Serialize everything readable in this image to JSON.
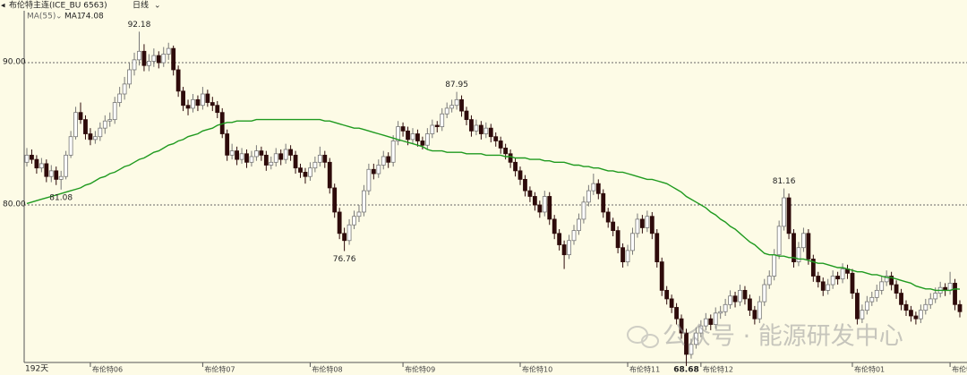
{
  "header": {
    "title": "布伦特主连(ICE_BU 6563)",
    "period": "日线",
    "indicator": "MA(55)"
  },
  "watermark": "公众号 · 能源研发中心",
  "chart_data": {
    "type": "candlestick",
    "days_label": "192天",
    "categories": [
      null,
      null,
      null,
      null,
      null,
      null,
      null,
      null,
      null,
      null,
      null,
      null,
      null,
      "布伦特06",
      null,
      null,
      null,
      null,
      null,
      null,
      null,
      null,
      null,
      null,
      null,
      null,
      null,
      null,
      null,
      null,
      null,
      null,
      null,
      null,
      null,
      null,
      "布伦特07",
      null,
      null,
      null,
      null,
      null,
      null,
      null,
      null,
      null,
      null,
      null,
      null,
      null,
      null,
      null,
      null,
      null,
      null,
      null,
      null,
      null,
      "布伦特08",
      null,
      null,
      null,
      null,
      null,
      null,
      null,
      null,
      null,
      null,
      null,
      null,
      null,
      null,
      null,
      null,
      null,
      null,
      "布伦特09",
      null,
      null,
      null,
      null,
      null,
      null,
      null,
      null,
      null,
      null,
      null,
      null,
      null,
      null,
      null,
      null,
      null,
      null,
      null,
      null,
      null,
      null,
      null,
      "布伦特10",
      null,
      null,
      null,
      null,
      null,
      null,
      null,
      null,
      null,
      null,
      null,
      null,
      null,
      null,
      null,
      null,
      null,
      null,
      null,
      null,
      null,
      "布伦特11",
      null,
      null,
      null,
      null,
      null,
      null,
      null,
      null,
      null,
      null,
      null,
      null,
      null,
      null,
      "布伦特12",
      null,
      null,
      null,
      null,
      null,
      null,
      null,
      null,
      null,
      null,
      null,
      null,
      null,
      null,
      null,
      null,
      null,
      null,
      null,
      null,
      null,
      null,
      null,
      null,
      null,
      null,
      null,
      null,
      null,
      null,
      "布伦特01",
      null,
      null,
      null,
      null,
      null,
      null,
      null,
      null,
      null,
      null,
      null,
      null,
      null,
      null,
      null,
      null,
      null,
      null,
      null,
      "布伦特",
      null,
      null
    ],
    "open": [
      83.0,
      83.5,
      83.2,
      82.6,
      82.9,
      82.0,
      82.4,
      81.8,
      82.0,
      83.5,
      84.8,
      86.5,
      86.0,
      85.0,
      84.6,
      84.8,
      85.4,
      85.9,
      86.0,
      87.2,
      87.8,
      88.5,
      89.5,
      90.2,
      90.8,
      89.8,
      90.1,
      90.5,
      90.0,
      90.6,
      91.0,
      89.5,
      88.0,
      87.0,
      86.8,
      87.4,
      87.0,
      87.8,
      87.2,
      87.0,
      86.5,
      85.0,
      83.5,
      83.8,
      83.2,
      83.6,
      83.0,
      83.4,
      83.8,
      83.5,
      82.8,
      83.0,
      83.6,
      83.2,
      83.9,
      83.5,
      82.6,
      82.3,
      82.0,
      82.6,
      83.0,
      83.5,
      83.0,
      81.2,
      79.5,
      78.0,
      77.5,
      78.6,
      79.2,
      79.5,
      81.0,
      82.5,
      82.2,
      82.8,
      83.4,
      83.0,
      84.5,
      85.5,
      85.2,
      84.6,
      85.0,
      84.5,
      84.2,
      85.0,
      85.6,
      85.5,
      86.4,
      86.8,
      87.0,
      87.4,
      86.6,
      86.0,
      85.2,
      85.6,
      85.0,
      85.4,
      84.8,
      84.5,
      84.0,
      83.6,
      83.0,
      82.4,
      81.8,
      81.0,
      80.6,
      80.0,
      79.5,
      80.6,
      79.0,
      78.0,
      77.2,
      76.5,
      77.5,
      78.2,
      79.0,
      80.2,
      81.0,
      81.5,
      80.8,
      79.5,
      78.8,
      78.2,
      77.0,
      76.0,
      76.8,
      78.0,
      79.0,
      78.4,
      79.2,
      78.0,
      76.0,
      74.0,
      73.4,
      72.8,
      72.0,
      71.0,
      69.5,
      70.2,
      71.0,
      71.5,
      72.0,
      71.6,
      72.4,
      72.5,
      73.0,
      73.6,
      73.2,
      74.0,
      73.4,
      72.6,
      72.0,
      73.2,
      74.4,
      75.0,
      76.5,
      78.5,
      80.5,
      78.0,
      76.0,
      77.0,
      78.0,
      76.2,
      75.0,
      74.6,
      74.0,
      74.4,
      75.0,
      74.8,
      75.5,
      75.2,
      73.8,
      72.0,
      72.6,
      73.2,
      73.5,
      74.0,
      74.6,
      75.0,
      74.4,
      73.8,
      73.0,
      72.6,
      72.2,
      72.0,
      72.6,
      73.0,
      73.4,
      73.8,
      74.2,
      74.0,
      74.5,
      73.0
    ],
    "high": [
      84.0,
      83.9,
      83.5,
      83.3,
      83.2,
      82.8,
      82.7,
      82.4,
      83.8,
      85.2,
      86.9,
      87.2,
      86.3,
      85.4,
      85.2,
      85.8,
      86.3,
      86.5,
      87.6,
      88.3,
      89.0,
      90.0,
      90.7,
      92.18,
      91.3,
      90.6,
      91.0,
      90.8,
      91.1,
      91.4,
      91.2,
      89.8,
      88.3,
      87.4,
      87.8,
      87.7,
      88.3,
      88.1,
      87.6,
      87.3,
      86.8,
      85.3,
      84.3,
      84.1,
      84.0,
      83.9,
      83.8,
      84.2,
      84.1,
      83.8,
      83.4,
      84.0,
      83.9,
      84.3,
      84.2,
      83.8,
      82.9,
      82.6,
      83.0,
      83.4,
      84.1,
      83.8,
      83.3,
      81.5,
      79.8,
      78.4,
      79.0,
      79.6,
      80.0,
      81.4,
      82.9,
      82.9,
      83.2,
      83.8,
      83.7,
      84.9,
      85.9,
      85.8,
      85.5,
      85.4,
      85.3,
      84.8,
      85.4,
      86.0,
      85.9,
      86.8,
      87.2,
      87.4,
      87.95,
      87.7,
      86.9,
      86.3,
      86.0,
      85.9,
      85.8,
      85.7,
      85.1,
      84.8,
      84.3,
      83.9,
      83.3,
      82.7,
      82.1,
      81.3,
      80.9,
      80.3,
      81.0,
      80.9,
      79.3,
      78.3,
      77.5,
      77.9,
      78.6,
      79.4,
      80.6,
      81.4,
      82.2,
      81.8,
      81.1,
      79.8,
      79.1,
      78.5,
      77.3,
      77.2,
      78.4,
      79.4,
      79.3,
      79.6,
      79.5,
      78.3,
      76.3,
      74.3,
      73.7,
      73.1,
      72.3,
      71.3,
      70.6,
      71.4,
      71.9,
      72.4,
      72.3,
      72.8,
      72.9,
      73.4,
      74.0,
      73.9,
      74.4,
      74.3,
      73.7,
      72.9,
      73.6,
      74.8,
      75.4,
      76.9,
      78.9,
      81.16,
      80.8,
      78.3,
      77.4,
      78.4,
      78.3,
      76.5,
      75.3,
      74.9,
      74.8,
      75.4,
      75.3,
      75.9,
      75.8,
      75.5,
      74.1,
      73.0,
      73.6,
      73.9,
      74.4,
      75.0,
      75.4,
      75.3,
      74.7,
      74.1,
      73.3,
      72.9,
      72.5,
      73.0,
      73.4,
      73.8,
      74.2,
      74.6,
      74.5,
      75.3,
      74.8,
      73.3
    ],
    "low": [
      82.7,
      82.9,
      82.2,
      82.3,
      81.6,
      81.6,
      81.4,
      81.08,
      81.8,
      83.3,
      84.6,
      85.7,
      84.6,
      84.2,
      84.3,
      84.5,
      85.0,
      85.5,
      85.7,
      86.9,
      87.4,
      88.2,
      89.1,
      89.8,
      89.4,
      89.4,
      89.7,
      89.6,
      89.7,
      90.2,
      89.1,
      87.6,
      86.6,
      86.3,
      86.5,
      86.6,
      86.7,
      86.9,
      86.6,
      86.1,
      84.7,
      83.1,
      83.2,
      82.8,
      82.9,
      82.6,
      82.7,
      83.1,
      83.1,
      82.4,
      82.5,
      82.7,
      82.8,
      82.9,
      83.1,
      82.2,
      81.9,
      81.5,
      81.7,
      82.3,
      82.7,
      82.6,
      80.8,
      79.1,
      77.6,
      76.76,
      77.2,
      78.3,
      78.8,
      79.2,
      80.7,
      81.8,
      81.9,
      82.5,
      82.6,
      82.7,
      84.2,
      84.8,
      84.2,
      84.3,
      84.1,
      83.9,
      83.9,
      84.7,
      85.1,
      85.2,
      86.1,
      86.5,
      86.7,
      86.2,
      85.6,
      84.8,
      84.9,
      84.6,
      84.7,
      84.4,
      84.1,
      83.6,
      83.2,
      82.6,
      82.0,
      81.4,
      80.6,
      80.2,
      79.6,
      79.1,
      79.2,
      78.6,
      77.6,
      76.8,
      75.5,
      76.2,
      77.2,
      77.9,
      78.7,
      79.9,
      80.7,
      80.4,
      79.1,
      78.4,
      77.8,
      76.6,
      75.6,
      75.7,
      76.5,
      77.7,
      78.0,
      78.1,
      77.6,
      75.6,
      73.6,
      73.0,
      72.4,
      71.6,
      70.6,
      68.68,
      69.2,
      69.9,
      70.7,
      71.2,
      71.2,
      71.3,
      72.0,
      72.2,
      72.7,
      72.8,
      72.9,
      73.0,
      72.2,
      71.6,
      71.7,
      72.9,
      74.1,
      74.7,
      76.2,
      78.2,
      77.6,
      75.6,
      75.7,
      76.7,
      75.8,
      74.6,
      74.2,
      73.6,
      73.7,
      74.1,
      74.4,
      74.5,
      74.8,
      73.4,
      71.6,
      71.7,
      72.3,
      72.9,
      73.2,
      73.7,
      74.3,
      74.0,
      73.4,
      72.6,
      72.2,
      71.8,
      71.6,
      71.7,
      72.3,
      72.7,
      73.1,
      73.5,
      73.6,
      73.7,
      72.6,
      72.1
    ],
    "close": [
      83.5,
      83.2,
      82.6,
      82.9,
      82.0,
      82.4,
      81.8,
      82.0,
      83.5,
      84.8,
      86.5,
      86.0,
      85.0,
      84.6,
      84.8,
      85.4,
      85.9,
      86.0,
      87.2,
      87.8,
      88.5,
      89.5,
      90.2,
      90.8,
      89.8,
      90.1,
      90.5,
      90.0,
      90.6,
      91.0,
      89.5,
      88.0,
      87.0,
      86.8,
      87.4,
      87.0,
      87.8,
      87.2,
      87.0,
      86.5,
      85.0,
      83.5,
      83.8,
      83.2,
      83.6,
      83.0,
      83.4,
      83.8,
      83.5,
      82.8,
      83.0,
      83.6,
      83.2,
      83.9,
      83.5,
      82.6,
      82.3,
      82.0,
      82.6,
      83.0,
      83.5,
      83.0,
      81.2,
      79.5,
      78.0,
      77.5,
      78.6,
      79.2,
      79.5,
      81.0,
      82.5,
      82.2,
      82.8,
      83.4,
      83.0,
      84.5,
      85.5,
      85.2,
      84.6,
      85.0,
      84.5,
      84.2,
      85.0,
      85.6,
      85.5,
      86.4,
      86.8,
      87.0,
      87.4,
      86.6,
      86.0,
      85.2,
      85.6,
      85.0,
      85.4,
      84.8,
      84.5,
      84.0,
      83.6,
      83.0,
      82.4,
      81.8,
      81.0,
      80.6,
      80.0,
      79.5,
      80.6,
      79.0,
      78.0,
      77.2,
      76.5,
      77.5,
      78.2,
      79.0,
      80.2,
      81.0,
      81.5,
      80.8,
      79.5,
      78.8,
      78.2,
      77.0,
      76.0,
      76.8,
      78.0,
      79.0,
      78.4,
      79.2,
      78.0,
      76.0,
      74.0,
      73.4,
      72.8,
      72.0,
      71.0,
      69.5,
      70.2,
      71.0,
      71.5,
      72.0,
      71.6,
      72.4,
      72.5,
      73.0,
      73.6,
      73.2,
      74.0,
      73.4,
      72.6,
      72.0,
      73.2,
      74.4,
      75.0,
      76.5,
      78.5,
      80.5,
      78.0,
      76.0,
      77.0,
      78.0,
      76.2,
      75.0,
      74.6,
      74.0,
      74.4,
      75.0,
      74.8,
      75.5,
      75.2,
      73.8,
      72.0,
      72.6,
      73.2,
      73.5,
      74.0,
      74.6,
      75.0,
      74.4,
      73.8,
      73.0,
      72.6,
      72.2,
      72.0,
      72.6,
      73.0,
      73.4,
      73.8,
      74.2,
      74.0,
      74.5,
      73.0,
      72.5
    ],
    "ma": {
      "name": "MA1",
      "color": "#1f9a1f",
      "values": [
        80.1,
        80.2,
        80.3,
        80.4,
        80.5,
        80.6,
        80.7,
        80.8,
        80.9,
        81.0,
        81.1,
        81.2,
        81.4,
        81.5,
        81.7,
        81.9,
        82.0,
        82.2,
        82.3,
        82.5,
        82.7,
        82.8,
        83.0,
        83.2,
        83.3,
        83.5,
        83.7,
        83.8,
        84.0,
        84.2,
        84.3,
        84.5,
        84.6,
        84.8,
        84.9,
        85.0,
        85.2,
        85.3,
        85.4,
        85.6,
        85.7,
        85.8,
        85.8,
        85.9,
        85.9,
        85.9,
        85.9,
        86.0,
        86.0,
        86.0,
        86.0,
        86.0,
        86.0,
        86.0,
        86.0,
        86.0,
        86.0,
        86.0,
        86.0,
        86.0,
        86.0,
        85.9,
        85.9,
        85.8,
        85.7,
        85.6,
        85.5,
        85.4,
        85.4,
        85.3,
        85.2,
        85.1,
        85.0,
        84.9,
        84.8,
        84.7,
        84.6,
        84.5,
        84.4,
        84.3,
        84.2,
        84.1,
        83.9,
        83.8,
        83.8,
        83.8,
        83.7,
        83.7,
        83.7,
        83.7,
        83.6,
        83.6,
        83.6,
        83.6,
        83.5,
        83.5,
        83.5,
        83.5,
        83.4,
        83.4,
        83.3,
        83.3,
        83.3,
        83.2,
        83.2,
        83.2,
        83.1,
        83.1,
        83.0,
        83.0,
        83.0,
        82.9,
        82.8,
        82.8,
        82.7,
        82.7,
        82.6,
        82.6,
        82.5,
        82.4,
        82.4,
        82.3,
        82.3,
        82.2,
        82.1,
        82.0,
        81.9,
        81.8,
        81.8,
        81.7,
        81.6,
        81.5,
        81.3,
        81.1,
        80.9,
        80.6,
        80.4,
        80.2,
        80.0,
        79.8,
        79.5,
        79.3,
        79.0,
        78.8,
        78.5,
        78.3,
        78.0,
        77.7,
        77.4,
        77.2,
        76.9,
        76.6,
        76.5,
        76.5,
        76.4,
        76.4,
        76.3,
        76.3,
        76.2,
        76.2,
        76.1,
        76.0,
        75.9,
        75.9,
        75.8,
        75.7,
        75.6,
        75.6,
        75.5,
        75.4,
        75.3,
        75.3,
        75.2,
        75.1,
        75.1,
        75.0,
        74.9,
        74.9,
        74.8,
        74.7,
        74.6,
        74.5,
        74.3,
        74.2,
        74.1,
        74.1,
        74.0,
        74.0,
        74.0,
        74.0,
        74.1,
        74.08
      ]
    },
    "ylim": [
      68.93,
      93.65
    ],
    "yticks": [
      {
        "value": 80,
        "label": "80.00"
      },
      {
        "value": 90,
        "label": "90.00"
      }
    ],
    "grid": true,
    "up_color": "#ffffff",
    "down_color": "#2e0b0b",
    "annotations": [
      {
        "value": 92.18,
        "at": "high"
      },
      {
        "value": 87.95,
        "at": "high"
      },
      {
        "value": 81.16,
        "at": "high"
      },
      {
        "value": 81.08,
        "at": "low"
      },
      {
        "value": 76.76,
        "at": "low"
      },
      {
        "value": 68.68,
        "at": "low"
      }
    ]
  }
}
